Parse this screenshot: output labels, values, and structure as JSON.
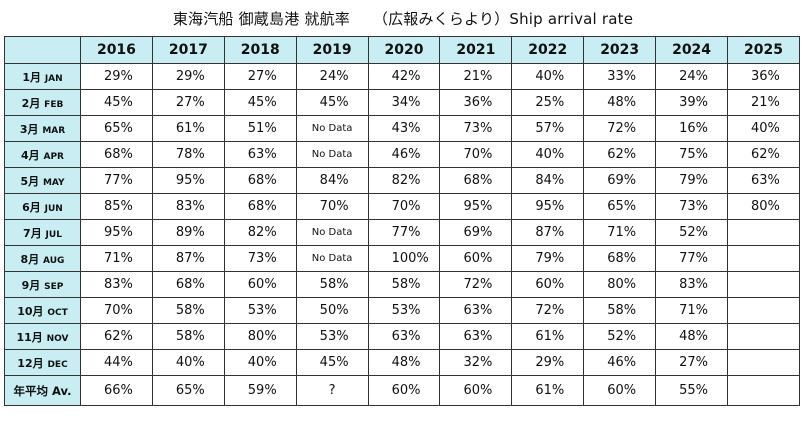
{
  "title": "東海汽船 御蔵島港 就航率　　（広報みくらより）Ship arrival rate",
  "table": {
    "years": [
      "2016",
      "2017",
      "2018",
      "2019",
      "2020",
      "2021",
      "2022",
      "2023",
      "2024",
      "2025"
    ],
    "rows": [
      {
        "jp": "1月",
        "en": "JAN",
        "values": [
          "29%",
          "29%",
          "27%",
          "24%",
          "42%",
          "21%",
          "40%",
          "33%",
          "24%",
          "36%"
        ]
      },
      {
        "jp": "2月",
        "en": "FEB",
        "values": [
          "45%",
          "27%",
          "45%",
          "45%",
          "34%",
          "36%",
          "25%",
          "48%",
          "39%",
          "21%"
        ]
      },
      {
        "jp": "3月",
        "en": "MAR",
        "values": [
          "65%",
          "61%",
          "51%",
          "No Data",
          "43%",
          "73%",
          "57%",
          "72%",
          "16%",
          "40%"
        ]
      },
      {
        "jp": "4月",
        "en": "APR",
        "values": [
          "68%",
          "78%",
          "63%",
          "No Data",
          "46%",
          "70%",
          "40%",
          "62%",
          "75%",
          "62%"
        ]
      },
      {
        "jp": "5月",
        "en": "MAY",
        "values": [
          "77%",
          "95%",
          "68%",
          "84%",
          "82%",
          "68%",
          "84%",
          "69%",
          "79%",
          "63%"
        ]
      },
      {
        "jp": "6月",
        "en": "JUN",
        "values": [
          "85%",
          "83%",
          "68%",
          "70%",
          "70%",
          "95%",
          "95%",
          "65%",
          "73%",
          "80%"
        ]
      },
      {
        "jp": "7月",
        "en": "JUL",
        "values": [
          "95%",
          "89%",
          "82%",
          "No Data",
          "77%",
          "69%",
          "87%",
          "71%",
          "52%",
          ""
        ]
      },
      {
        "jp": "8月",
        "en": "AUG",
        "values": [
          "71%",
          "87%",
          "73%",
          "No Data",
          "100%",
          "60%",
          "79%",
          "68%",
          "77%",
          ""
        ]
      },
      {
        "jp": "9月",
        "en": "SEP",
        "values": [
          "83%",
          "68%",
          "60%",
          "58%",
          "58%",
          "72%",
          "60%",
          "80%",
          "83%",
          ""
        ]
      },
      {
        "jp": "10月",
        "en": "OCT",
        "values": [
          "70%",
          "58%",
          "53%",
          "50%",
          "53%",
          "63%",
          "72%",
          "58%",
          "71%",
          ""
        ]
      },
      {
        "jp": "11月",
        "en": "NOV",
        "values": [
          "62%",
          "58%",
          "80%",
          "53%",
          "63%",
          "63%",
          "61%",
          "52%",
          "48%",
          ""
        ]
      },
      {
        "jp": "12月",
        "en": "DEC",
        "values": [
          "44%",
          "40%",
          "40%",
          "45%",
          "48%",
          "32%",
          "29%",
          "46%",
          "27%",
          ""
        ]
      }
    ],
    "average": {
      "label": "年平均 Av.",
      "values": [
        "66%",
        "65%",
        "59%",
        "?",
        "60%",
        "60%",
        "61%",
        "60%",
        "55%",
        ""
      ]
    }
  }
}
